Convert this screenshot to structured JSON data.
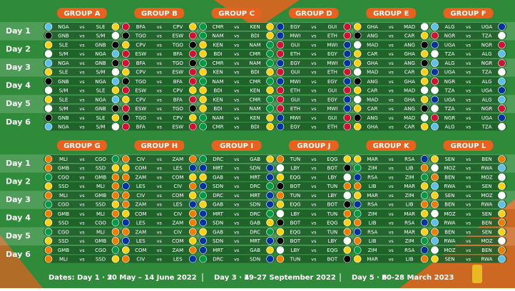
{
  "vs_label": "vs",
  "day_labels": [
    "Day 1",
    "Day 2",
    "Day 3",
    "Day 4",
    "Day 5",
    "Day 6"
  ],
  "sections": [
    {
      "groups": [
        {
          "label": "GROUP A",
          "days": [
            [
              [
                "NGA",
                "SLE"
              ],
              [
                "GNB",
                "S/M"
              ]
            ],
            [
              [
                "SLE",
                "GNB"
              ],
              [
                "S/M",
                "NGA"
              ]
            ],
            [
              [
                "NGA",
                "GNB"
              ],
              [
                "SLE",
                "S/M"
              ]
            ],
            [
              [
                "GNB",
                "NGA"
              ],
              [
                "S/M",
                "SLE"
              ]
            ],
            [
              [
                "SLE",
                "NGA"
              ],
              [
                "S/M",
                "GNB"
              ]
            ],
            [
              [
                "GNB",
                "SLE"
              ],
              [
                "NGA",
                "S/M"
              ]
            ]
          ]
        },
        {
          "label": "GROUP B",
          "days": [
            [
              [
                "BFA",
                "CPV"
              ],
              [
                "TGO",
                "ESW"
              ]
            ],
            [
              [
                "CPV",
                "TGO"
              ],
              [
                "ESW",
                "BFA"
              ]
            ],
            [
              [
                "BFA",
                "TGO"
              ],
              [
                "CPV",
                "ESW"
              ]
            ],
            [
              [
                "TGO",
                "BFA"
              ],
              [
                "ESW",
                "CPV"
              ]
            ],
            [
              [
                "CPV",
                "BFA"
              ],
              [
                "ESW",
                "TGO"
              ]
            ],
            [
              [
                "TGO",
                "CPV"
              ],
              [
                "BFA",
                "ESW"
              ]
            ]
          ]
        },
        {
          "label": "GROUP C",
          "days": [
            [
              [
                "CMR",
                "KEN"
              ],
              [
                "NAM",
                "BDI"
              ]
            ],
            [
              [
                "KEN",
                "NAM"
              ],
              [
                "BDI",
                "CMR"
              ]
            ],
            [
              [
                "CMR",
                "NAM"
              ],
              [
                "KEN",
                "BDI"
              ]
            ],
            [
              [
                "NAM",
                "CMR"
              ],
              [
                "BDI",
                "KEN"
              ]
            ],
            [
              [
                "KEN",
                "CMR"
              ],
              [
                "BDI",
                "NAM"
              ]
            ],
            [
              [
                "NAM",
                "KEN"
              ],
              [
                "CMR",
                "BDI"
              ]
            ]
          ]
        },
        {
          "label": "GROUP D",
          "days": [
            [
              [
                "EGY",
                "GUI"
              ],
              [
                "MWI",
                "ETH"
              ]
            ],
            [
              [
                "GUI",
                "MWI"
              ],
              [
                "ETH",
                "EGY"
              ]
            ],
            [
              [
                "EGY",
                "MWI"
              ],
              [
                "GUI",
                "ETH"
              ]
            ],
            [
              [
                "MWI",
                "EGY"
              ],
              [
                "ETH",
                "GUI"
              ]
            ],
            [
              [
                "GUI",
                "EGY"
              ],
              [
                "ETH",
                "MWI"
              ]
            ],
            [
              [
                "MWI",
                "GUI"
              ],
              [
                "EGY",
                "ETH"
              ]
            ]
          ]
        },
        {
          "label": "GROUP E",
          "days": [
            [
              [
                "GHA",
                "MAD"
              ],
              [
                "ANG",
                "CAR"
              ]
            ],
            [
              [
                "MAD",
                "ANG"
              ],
              [
                "CAR",
                "GHA"
              ]
            ],
            [
              [
                "GHA",
                "ANG"
              ],
              [
                "MAD",
                "CAR"
              ]
            ],
            [
              [
                "ANG",
                "GHA"
              ],
              [
                "CAR",
                "MAD"
              ]
            ],
            [
              [
                "MAD",
                "GHA"
              ],
              [
                "CAR",
                "ANG"
              ]
            ],
            [
              [
                "ANG",
                "MAD"
              ],
              [
                "GHA",
                "CAR"
              ]
            ]
          ]
        },
        {
          "label": "GROUP F",
          "days": [
            [
              [
                "ALG",
                "UGA"
              ],
              [
                "NGR",
                "TZA"
              ]
            ],
            [
              [
                "UGA",
                "NGR"
              ],
              [
                "TZA",
                "ALG"
              ]
            ],
            [
              [
                "ALG",
                "NGR"
              ],
              [
                "UGA",
                "TZA"
              ]
            ],
            [
              [
                "NGR",
                "ALG"
              ],
              [
                "TZA",
                "UGA"
              ]
            ],
            [
              [
                "UGA",
                "ALG"
              ],
              [
                "TZA",
                "NGR"
              ]
            ],
            [
              [
                "NGR",
                "UGA"
              ],
              [
                "ALG",
                "TZA"
              ]
            ]
          ]
        }
      ]
    },
    {
      "groups": [
        {
          "label": "GROUP G",
          "days": [
            [
              [
                "MLI",
                "CGO"
              ],
              [
                "GMB",
                "SSD"
              ]
            ],
            [
              [
                "CGO",
                "GMB"
              ],
              [
                "SSD",
                "MLI"
              ]
            ],
            [
              [
                "MLI",
                "GMB"
              ],
              [
                "CGO",
                "SSD"
              ]
            ],
            [
              [
                "GMB",
                "MLI"
              ],
              [
                "SSD",
                "CGO"
              ]
            ],
            [
              [
                "CGO",
                "MLI"
              ],
              [
                "SSD",
                "GMB"
              ]
            ],
            [
              [
                "GMB",
                "CGO"
              ],
              [
                "MLI",
                "SSD"
              ]
            ]
          ]
        },
        {
          "label": "GROUP H",
          "days": [
            [
              [
                "CIV",
                "ZAM"
              ],
              [
                "COM",
                "LES"
              ]
            ],
            [
              [
                "ZAM",
                "COM"
              ],
              [
                "LES",
                "CIV"
              ]
            ],
            [
              [
                "CIV",
                "COM"
              ],
              [
                "ZAM",
                "LES"
              ]
            ],
            [
              [
                "COM",
                "CIV"
              ],
              [
                "LES",
                "ZAM"
              ]
            ],
            [
              [
                "ZAM",
                "CIV"
              ],
              [
                "LES",
                "COM"
              ]
            ],
            [
              [
                "COM",
                "ZAM"
              ],
              [
                "CIV",
                "LES"
              ]
            ]
          ]
        },
        {
          "label": "GROUP I",
          "days": [
            [
              [
                "DRC",
                "GAB"
              ],
              [
                "MRT",
                "SDN"
              ]
            ],
            [
              [
                "GAB",
                "MRT"
              ],
              [
                "SDN",
                "DRC"
              ]
            ],
            [
              [
                "DRC",
                "MRT"
              ],
              [
                "GAB",
                "SDN"
              ]
            ],
            [
              [
                "MRT",
                "DRC"
              ],
              [
                "SDN",
                "GAB"
              ]
            ],
            [
              [
                "GAB",
                "DRC"
              ],
              [
                "SDN",
                "MRT"
              ]
            ],
            [
              [
                "MRT",
                "GAB"
              ],
              [
                "DRC",
                "SDN"
              ]
            ]
          ]
        },
        {
          "label": "GROUP J",
          "days": [
            [
              [
                "TUN",
                "EQG"
              ],
              [
                "LBY",
                "BOT"
              ]
            ],
            [
              [
                "EQG",
                "LBY"
              ],
              [
                "BOT",
                "TUN"
              ]
            ],
            [
              [
                "TUN",
                "LBY"
              ],
              [
                "EQG",
                "BOT"
              ]
            ],
            [
              [
                "LBY",
                "TUN"
              ],
              [
                "BOT",
                "EQG"
              ]
            ],
            [
              [
                "EQG",
                "TUN"
              ],
              [
                "BOT",
                "LBY"
              ]
            ],
            [
              [
                "LBY",
                "EQG"
              ],
              [
                "TUN",
                "BOT"
              ]
            ]
          ]
        },
        {
          "label": "GROUP K",
          "days": [
            [
              [
                "MAR",
                "RSA"
              ],
              [
                "ZIM",
                "LIB"
              ]
            ],
            [
              [
                "RSA",
                "ZIM"
              ],
              [
                "LIB",
                "MAR"
              ]
            ],
            [
              [
                "MAR",
                "ZIM"
              ],
              [
                "RSA",
                "LIB"
              ]
            ],
            [
              [
                "ZIM",
                "MAR"
              ],
              [
                "LIB",
                "RSA"
              ]
            ],
            [
              [
                "RSA",
                "MAR"
              ],
              [
                "LIB",
                "ZIM"
              ]
            ],
            [
              [
                "ZIM",
                "RSA"
              ],
              [
                "MAR",
                "LIB"
              ]
            ]
          ]
        },
        {
          "label": "GROUP L",
          "days": [
            [
              [
                "SEN",
                "BEN"
              ],
              [
                "MOZ",
                "RWA"
              ]
            ],
            [
              [
                "BEN",
                "MOZ"
              ],
              [
                "RWA",
                "SEN"
              ]
            ],
            [
              [
                "SEN",
                "MOZ"
              ],
              [
                "BEN",
                "RWA"
              ]
            ],
            [
              [
                "MOZ",
                "SEN"
              ],
              [
                "RWA",
                "BEN"
              ]
            ],
            [
              [
                "BEN",
                "SEN"
              ],
              [
                "RWA",
                "MOZ"
              ]
            ],
            [
              [
                "MOZ",
                "BEN"
              ],
              [
                "SEN",
                "RWA"
              ]
            ]
          ]
        }
      ]
    }
  ],
  "footer": {
    "dates_label": "Dates:",
    "periods": [
      {
        "days": "Day 1 · 2",
        "dates": "30 May – 14 June 2022"
      },
      {
        "days": "Day 3 · 4",
        "dates": "19-27 September 2022"
      },
      {
        "days": "Day 5 · 6",
        "dates": "20-28 March 2023"
      }
    ]
  }
}
